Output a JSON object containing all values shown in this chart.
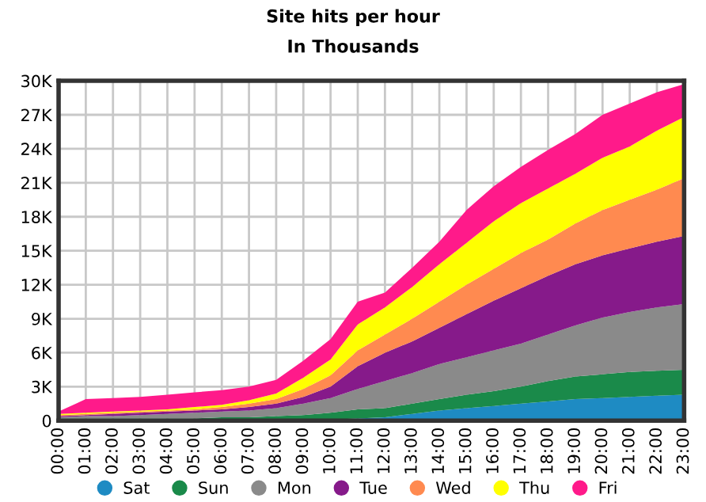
{
  "chart_data": {
    "type": "area",
    "title": "Site hits per hour",
    "subtitle": "In Thousands",
    "stacked": true,
    "grid": true,
    "legend": "bottom",
    "categories": [
      "00:00",
      "01:00",
      "02:00",
      "03:00",
      "04:00",
      "05:00",
      "06:00",
      "07:00",
      "08:00",
      "09:00",
      "10:00",
      "11:00",
      "12:00",
      "13:00",
      "14:00",
      "15:00",
      "16:00",
      "17:00",
      "18:00",
      "19:00",
      "20:00",
      "21:00",
      "22:00",
      "23:00"
    ],
    "ylim": [
      0,
      30
    ],
    "yticks": [
      0,
      {
        "value": 3,
        "label": "3K"
      },
      {
        "value": 6,
        "label": "6K"
      },
      {
        "value": 9,
        "label": "9K"
      },
      {
        "value": 12,
        "label": "12K"
      },
      {
        "value": 15,
        "label": "15K"
      },
      {
        "value": 18,
        "label": "18K"
      },
      {
        "value": 21,
        "label": "21K"
      },
      {
        "value": 24,
        "label": "24K"
      },
      {
        "value": 27,
        "label": "27K"
      },
      {
        "value": 30,
        "label": "30K"
      }
    ],
    "series": [
      {
        "name": "Sat",
        "color": "#1e8bc3",
        "values": [
          0.1,
          0.1,
          0.1,
          0.1,
          0.1,
          0.1,
          0.1,
          0.1,
          0.1,
          0.1,
          0.1,
          0.2,
          0.3,
          0.6,
          0.9,
          1.1,
          1.3,
          1.5,
          1.7,
          1.9,
          2.0,
          2.1,
          2.2,
          2.3
        ]
      },
      {
        "name": "Sun",
        "color": "#1a8a4a",
        "values": [
          0.1,
          0.1,
          0.1,
          0.1,
          0.1,
          0.1,
          0.2,
          0.2,
          0.3,
          0.4,
          0.6,
          0.8,
          0.8,
          0.9,
          1.0,
          1.2,
          1.3,
          1.5,
          1.8,
          2.0,
          2.1,
          2.2,
          2.2,
          2.2
        ]
      },
      {
        "name": "Mon",
        "color": "#8a8a8a",
        "values": [
          0.1,
          0.2,
          0.2,
          0.3,
          0.4,
          0.5,
          0.5,
          0.6,
          0.7,
          1.0,
          1.3,
          1.8,
          2.4,
          2.7,
          3.1,
          3.3,
          3.6,
          3.8,
          4.1,
          4.5,
          5.0,
          5.3,
          5.6,
          5.8
        ]
      },
      {
        "name": "Tue",
        "color": "#861a8a",
        "values": [
          0.1,
          0.1,
          0.2,
          0.2,
          0.2,
          0.2,
          0.2,
          0.3,
          0.4,
          0.6,
          1.0,
          2.0,
          2.5,
          2.8,
          3.2,
          3.8,
          4.4,
          4.9,
          5.2,
          5.4,
          5.5,
          5.6,
          5.8,
          6.0
        ]
      },
      {
        "name": "Wed",
        "color": "#ff8a50",
        "values": [
          0.1,
          0.1,
          0.1,
          0.1,
          0.1,
          0.1,
          0.2,
          0.3,
          0.4,
          0.7,
          1.0,
          1.4,
          1.6,
          2.0,
          2.3,
          2.6,
          2.8,
          3.1,
          3.2,
          3.6,
          4.0,
          4.3,
          4.6,
          5.1
        ]
      },
      {
        "name": "Thu",
        "color": "#ffff00",
        "values": [
          0.1,
          0.1,
          0.1,
          0.1,
          0.1,
          0.2,
          0.2,
          0.3,
          0.5,
          1.0,
          1.4,
          2.3,
          2.4,
          2.8,
          3.3,
          3.7,
          4.2,
          4.4,
          4.5,
          4.4,
          4.6,
          4.7,
          5.2,
          5.4
        ]
      },
      {
        "name": "Fri",
        "color": "#ff1a8a",
        "values": [
          0.2,
          1.2,
          1.2,
          1.2,
          1.3,
          1.3,
          1.3,
          1.2,
          1.2,
          1.5,
          1.8,
          2.0,
          1.3,
          1.7,
          2.0,
          2.9,
          3.1,
          3.2,
          3.4,
          3.5,
          3.8,
          3.8,
          3.4,
          2.9
        ]
      }
    ]
  }
}
